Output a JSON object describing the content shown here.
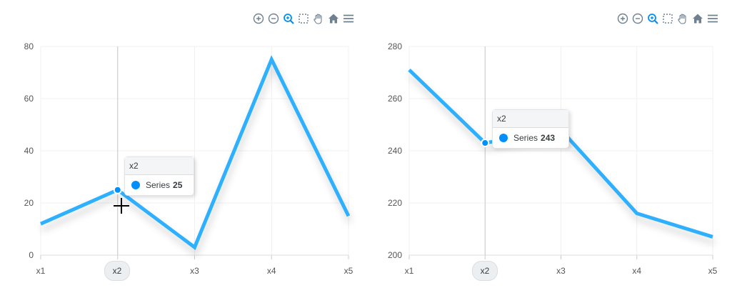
{
  "colors": {
    "line": "#2eb0ff",
    "marker": "#008ffb",
    "grid": "#f0f0f0",
    "icons": "#6e8192",
    "zoom_active": "#008ffb"
  },
  "toolbar_icons": [
    "zoom-in-icon",
    "zoom-out-icon",
    "selection-zoom-icon",
    "box-select-icon",
    "pan-hand-icon",
    "home-reset-icon",
    "menu-icon"
  ],
  "chart_data": [
    {
      "type": "line",
      "categories": [
        "x1",
        "x2",
        "x3",
        "x4",
        "x5"
      ],
      "series": [
        {
          "name": "Series",
          "values": [
            12,
            25,
            3,
            75,
            15
          ]
        }
      ],
      "ylim": [
        0,
        80
      ],
      "yticks": [
        0,
        20,
        40,
        60,
        80
      ],
      "grid": true,
      "tooltip": {
        "title": "x2",
        "series": "Series",
        "value": "25"
      },
      "hover_category": "x2"
    },
    {
      "type": "line",
      "categories": [
        "x1",
        "x2",
        "x3",
        "x4",
        "x5"
      ],
      "series": [
        {
          "name": "Series",
          "values": [
            271,
            243,
            248,
            216,
            207
          ]
        }
      ],
      "ylim": [
        200,
        280
      ],
      "yticks": [
        200,
        220,
        240,
        260,
        280
      ],
      "grid": true,
      "tooltip": {
        "title": "x2",
        "series": "Series",
        "value": "243"
      },
      "hover_category": "x2"
    }
  ]
}
